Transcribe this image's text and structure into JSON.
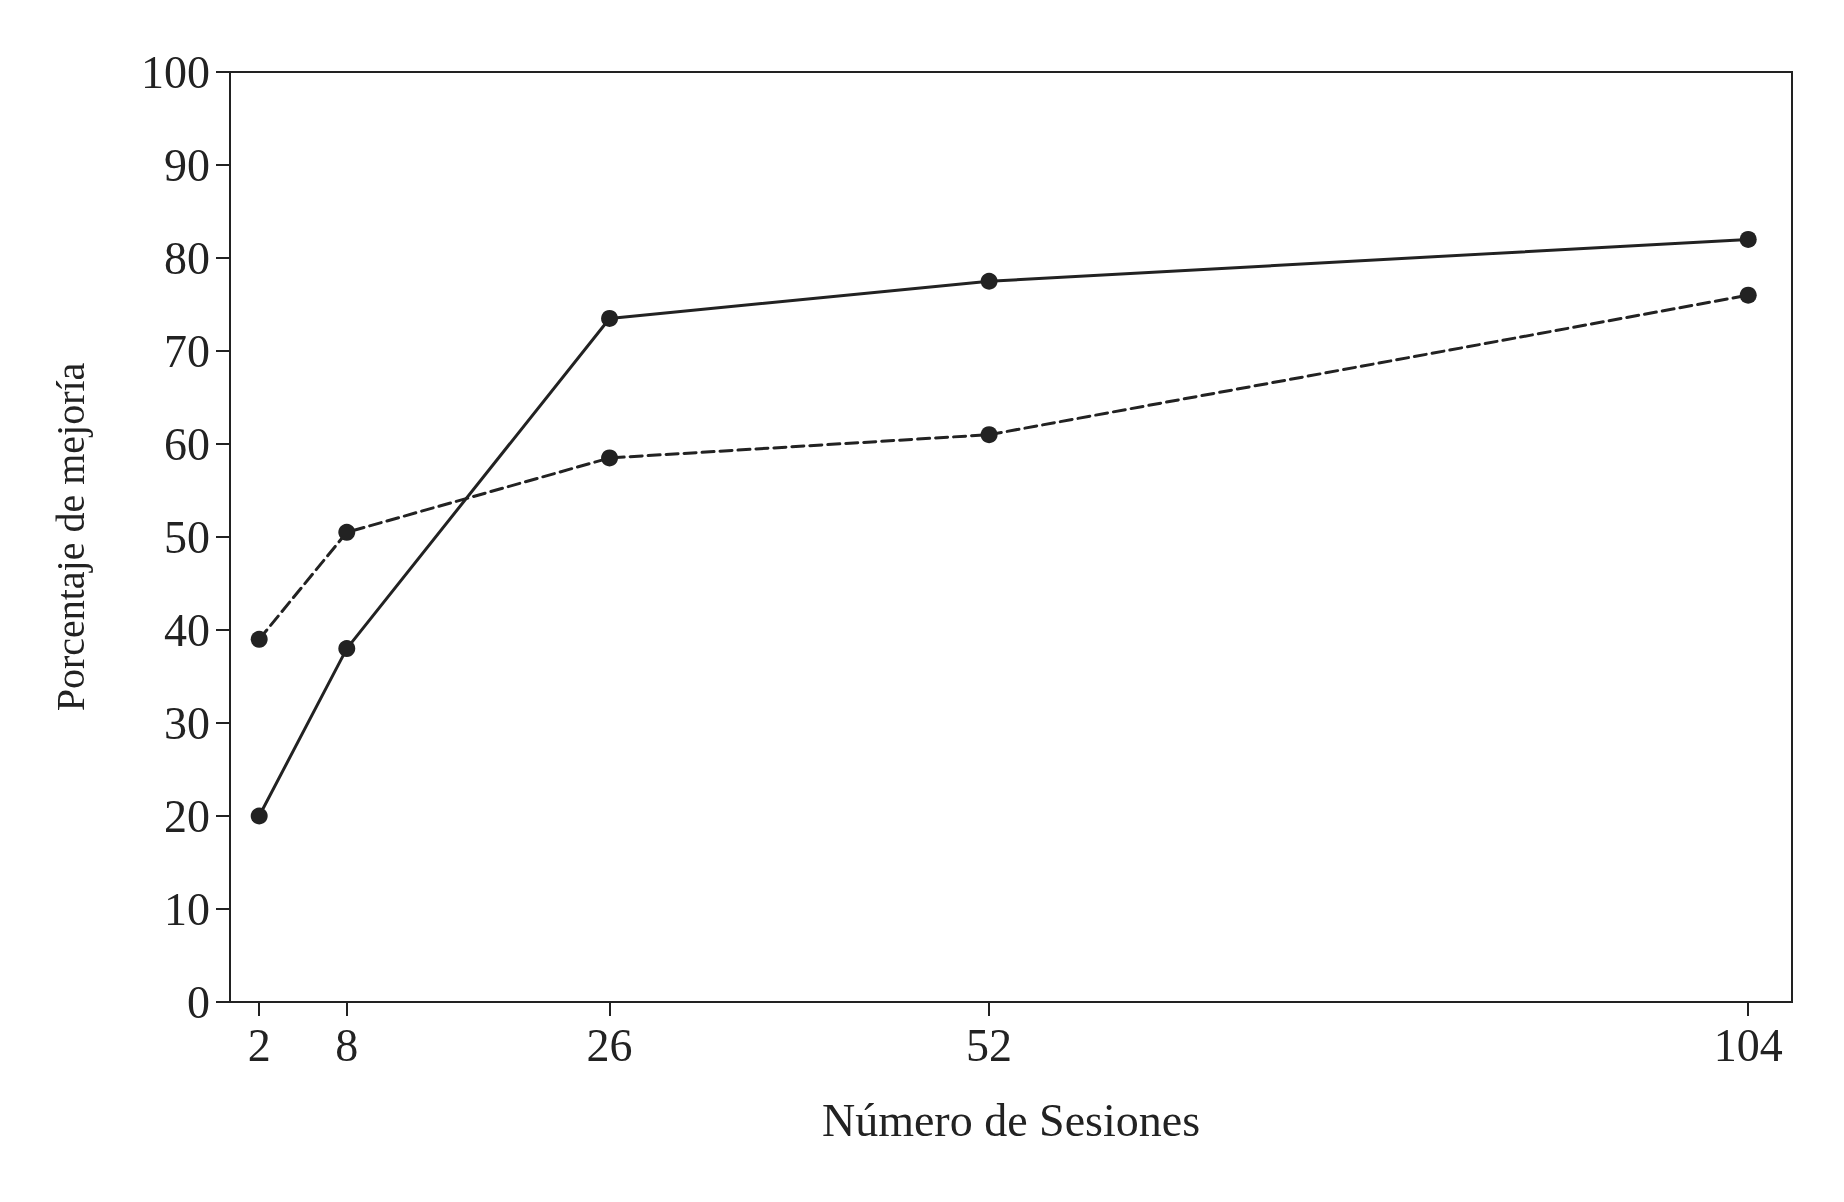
{
  "chart_data": {
    "type": "line",
    "xlabel": "Número de Sesiones",
    "ylabel": "Porcentaje de mejoría",
    "x": [
      2,
      8,
      26,
      52,
      104
    ],
    "series": [
      {
        "color": "#222222",
        "values": [
          20,
          38,
          73.5,
          77.5,
          82
        ],
        "line_style": "solid"
      },
      {
        "color": "#222222",
        "values": [
          39,
          50.5,
          58.5,
          61,
          76
        ],
        "line_style": "dashed"
      }
    ],
    "xlim": [
      0,
      107
    ],
    "xticks": [
      2,
      8,
      26,
      52,
      104
    ],
    "ylim": [
      0,
      100
    ],
    "yticks": [
      0,
      10,
      20,
      30,
      40,
      50,
      60,
      70,
      80,
      90,
      100
    ],
    "grid": false,
    "marker": "circle"
  }
}
